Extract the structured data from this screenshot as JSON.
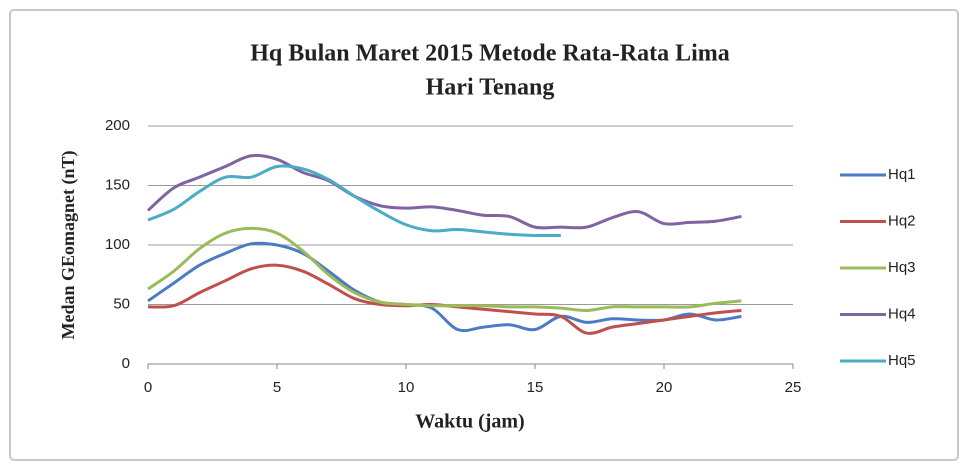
{
  "chart_data": {
    "type": "line",
    "title": [
      "Hq  Bulan  Maret 2015 Metode Rata-Rata Lima",
      "Hari  Tenang"
    ],
    "x_label": "Waktu (jam)",
    "y_label": "Medan GEomagnet (nT)",
    "x": [
      0,
      1,
      2,
      3,
      4,
      5,
      6,
      7,
      8,
      9,
      10,
      11,
      12,
      13,
      14,
      15,
      16,
      17,
      18,
      19,
      20,
      21,
      22,
      23
    ],
    "series": [
      {
        "name": "Hq1",
        "color": "#4a7bc4",
        "values": [
          53,
          68,
          83,
          93,
          101,
          100,
          93,
          78,
          62,
          52,
          50,
          47,
          29,
          31,
          33,
          29,
          40,
          35,
          38,
          37,
          37,
          42,
          37,
          40
        ]
      },
      {
        "name": "Hq2",
        "color": "#c0504d",
        "values": [
          48,
          49,
          60,
          70,
          80,
          83,
          78,
          67,
          55,
          50,
          49,
          50,
          48,
          46,
          44,
          42,
          40,
          26,
          31,
          34,
          37,
          40,
          43,
          45
        ]
      },
      {
        "name": "Hq3",
        "color": "#9bbb59",
        "values": [
          63,
          78,
          97,
          110,
          114,
          110,
          95,
          75,
          60,
          52,
          50,
          49,
          49,
          49,
          48,
          48,
          47,
          45,
          48,
          48,
          48,
          48,
          51,
          53
        ]
      },
      {
        "name": "Hq4",
        "color": "#8064a2",
        "values": [
          129,
          148,
          157,
          166,
          175,
          172,
          161,
          154,
          141,
          133,
          131,
          132,
          129,
          125,
          124,
          115,
          115,
          115,
          123,
          128,
          118,
          119,
          120,
          124
        ]
      },
      {
        "name": "Hq5",
        "color": "#4bacc6",
        "values": [
          121,
          130,
          145,
          157,
          157,
          166,
          164,
          155,
          141,
          128,
          117,
          112,
          113,
          111,
          109,
          108,
          108,
          null,
          null,
          null,
          null,
          null,
          null,
          null
        ]
      }
    ],
    "xlim": [
      0,
      25
    ],
    "xticks": [
      0,
      5,
      10,
      15,
      20,
      25
    ],
    "ylim": [
      0,
      200
    ],
    "yticks": [
      0,
      50,
      100,
      150,
      200
    ],
    "grid": true,
    "legend": "right"
  }
}
